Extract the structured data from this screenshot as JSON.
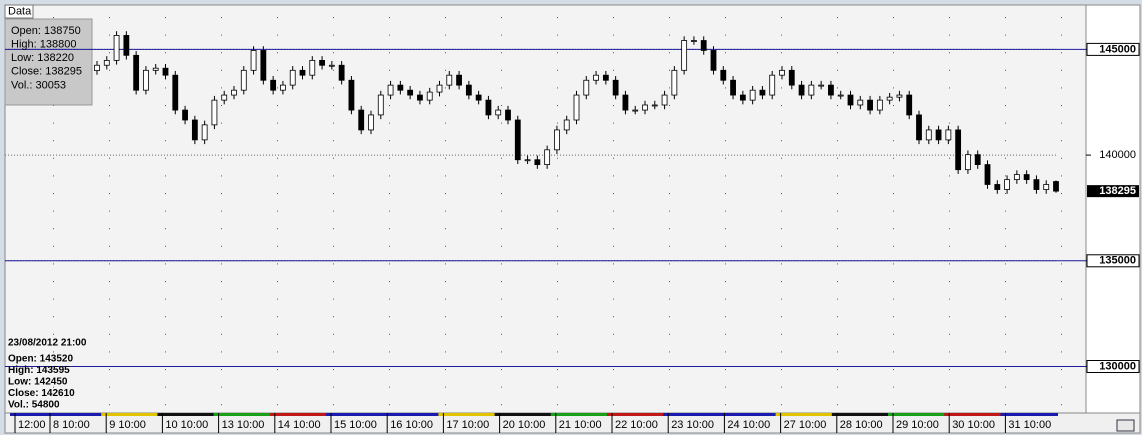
{
  "chart_data": {
    "type": "candlestick",
    "tab": "Data",
    "info_panel": [
      "Open: 138750",
      "High: 138800",
      "Low: 138220",
      "Close: 138295",
      "Vol.: 30053"
    ],
    "hover_panel": [
      "23/08/2012 21:00",
      "Open: 143520",
      "High: 143595",
      "Low: 142450",
      "Close: 142610",
      "Vol.: 54800"
    ],
    "categories": [
      "12:00",
      "8 10:00",
      "9 10:00",
      "10 10:00",
      "13 10:00",
      "14 10:00",
      "15 10:00",
      "16 10:00",
      "17 10:00",
      "20 10:00",
      "21 10:00",
      "22 10:00",
      "23 10:00",
      "24 10:00",
      "27 10:00",
      "28 10:00",
      "29 10:00",
      "30 10:00",
      "31 10:00"
    ],
    "ylim": [
      127800,
      147100
    ],
    "yticks": [
      130000,
      135000,
      140000,
      145000
    ],
    "hlines": [
      145000,
      135000,
      130000
    ],
    "hline_color": "#1a1a9c",
    "candle_color": "#000000",
    "candles": [
      [
        144000,
        144450,
        143800,
        144250
      ],
      [
        144250,
        144680,
        144050,
        144480
      ],
      [
        144480,
        145860,
        144280,
        145660
      ],
      [
        145660,
        145860,
        144520,
        144720
      ],
      [
        144720,
        144920,
        142870,
        143070
      ],
      [
        143070,
        144210,
        142870,
        144010
      ],
      [
        144010,
        144310,
        143810,
        144110
      ],
      [
        144110,
        144310,
        143580,
        143780
      ],
      [
        143780,
        143980,
        141930,
        142130
      ],
      [
        142130,
        142330,
        141460,
        141660
      ],
      [
        141660,
        141860,
        140520,
        140720
      ],
      [
        140720,
        141630,
        140520,
        141430
      ],
      [
        141430,
        142800,
        141230,
        142600
      ],
      [
        142600,
        143040,
        142400,
        142840
      ],
      [
        142840,
        143270,
        142640,
        143070
      ],
      [
        143070,
        144210,
        142870,
        144010
      ],
      [
        144010,
        145150,
        143810,
        144950
      ],
      [
        144950,
        145150,
        143340,
        143540
      ],
      [
        143540,
        143740,
        142870,
        143070
      ],
      [
        143070,
        143510,
        142870,
        143310
      ],
      [
        143310,
        144210,
        143110,
        144010
      ],
      [
        144010,
        144210,
        143580,
        143780
      ],
      [
        143780,
        144680,
        143580,
        144480
      ],
      [
        144480,
        144680,
        144050,
        144250
      ],
      [
        144250,
        144450,
        144050,
        144250
      ],
      [
        144250,
        144450,
        143340,
        143540
      ],
      [
        143540,
        143740,
        141930,
        142130
      ],
      [
        142130,
        142330,
        140990,
        141190
      ],
      [
        141190,
        142100,
        140990,
        141900
      ],
      [
        141900,
        143040,
        141700,
        142840
      ],
      [
        142840,
        143510,
        142640,
        143310
      ],
      [
        143310,
        143510,
        142870,
        143070
      ],
      [
        143070,
        143270,
        142640,
        142840
      ],
      [
        142840,
        143040,
        142400,
        142600
      ],
      [
        142600,
        143180,
        142400,
        142980
      ],
      [
        142980,
        143510,
        142780,
        143310
      ],
      [
        143310,
        143980,
        143110,
        143780
      ],
      [
        143780,
        143980,
        143110,
        143310
      ],
      [
        143310,
        143510,
        142640,
        142840
      ],
      [
        142840,
        143040,
        142400,
        142600
      ],
      [
        142600,
        142800,
        141700,
        141900
      ],
      [
        141900,
        142330,
        141700,
        142130
      ],
      [
        142130,
        142330,
        141460,
        141660
      ],
      [
        141660,
        141860,
        139580,
        139780
      ],
      [
        139780,
        139980,
        139580,
        139780
      ],
      [
        139780,
        139980,
        139350,
        139550
      ],
      [
        139550,
        140450,
        139350,
        140250
      ],
      [
        140250,
        141390,
        140050,
        141190
      ],
      [
        141190,
        141860,
        140990,
        141660
      ],
      [
        141660,
        143040,
        141460,
        142840
      ],
      [
        142840,
        143740,
        142640,
        143540
      ],
      [
        143540,
        143980,
        143340,
        143780
      ],
      [
        143780,
        143980,
        143340,
        143540
      ],
      [
        143540,
        143740,
        142640,
        142840
      ],
      [
        142840,
        143040,
        141930,
        142130
      ],
      [
        142130,
        142330,
        141930,
        142130
      ],
      [
        142130,
        142570,
        141930,
        142370
      ],
      [
        142370,
        142570,
        142170,
        142370
      ],
      [
        142370,
        143040,
        142170,
        142840
      ],
      [
        142840,
        144210,
        142640,
        144010
      ],
      [
        144010,
        145620,
        143810,
        145420
      ],
      [
        145420,
        145620,
        145220,
        145420
      ],
      [
        145420,
        145620,
        144750,
        144950
      ],
      [
        144950,
        145150,
        143810,
        144010
      ],
      [
        144010,
        144210,
        143340,
        143540
      ],
      [
        143540,
        143740,
        142640,
        142840
      ],
      [
        142840,
        143040,
        142400,
        142600
      ],
      [
        142600,
        143270,
        142400,
        143070
      ],
      [
        143070,
        143270,
        142640,
        142840
      ],
      [
        142840,
        143980,
        142640,
        143780
      ],
      [
        143780,
        144210,
        143580,
        144010
      ],
      [
        144010,
        144210,
        143110,
        143310
      ],
      [
        143310,
        143510,
        142640,
        142840
      ],
      [
        142840,
        143510,
        142640,
        143310
      ],
      [
        143310,
        143510,
        143110,
        143310
      ],
      [
        143310,
        143510,
        142640,
        142840
      ],
      [
        142840,
        143040,
        142640,
        142840
      ],
      [
        142840,
        143040,
        142170,
        142370
      ],
      [
        142370,
        142800,
        142170,
        142600
      ],
      [
        142600,
        142800,
        141930,
        142130
      ],
      [
        142130,
        142800,
        141930,
        142600
      ],
      [
        142600,
        142940,
        142400,
        142740
      ],
      [
        142740,
        143040,
        142540,
        142840
      ],
      [
        142840,
        143040,
        141700,
        141900
      ],
      [
        141900,
        142100,
        140520,
        140720
      ],
      [
        140720,
        141390,
        140520,
        141190
      ],
      [
        141190,
        141390,
        140520,
        140720
      ],
      [
        140720,
        141390,
        140520,
        141190
      ],
      [
        141190,
        141390,
        139110,
        139310
      ],
      [
        139310,
        140220,
        139110,
        140020
      ],
      [
        140020,
        140220,
        139350,
        139550
      ],
      [
        139550,
        139750,
        138410,
        138610
      ],
      [
        138610,
        138810,
        138170,
        138370
      ],
      [
        138370,
        139040,
        138170,
        138840
      ],
      [
        138840,
        139280,
        138640,
        139080
      ],
      [
        139080,
        139280,
        138640,
        138840
      ],
      [
        138840,
        139040,
        138170,
        138370
      ],
      [
        138370,
        138810,
        138170,
        138610
      ],
      [
        138750,
        138800,
        138220,
        138295
      ]
    ]
  }
}
